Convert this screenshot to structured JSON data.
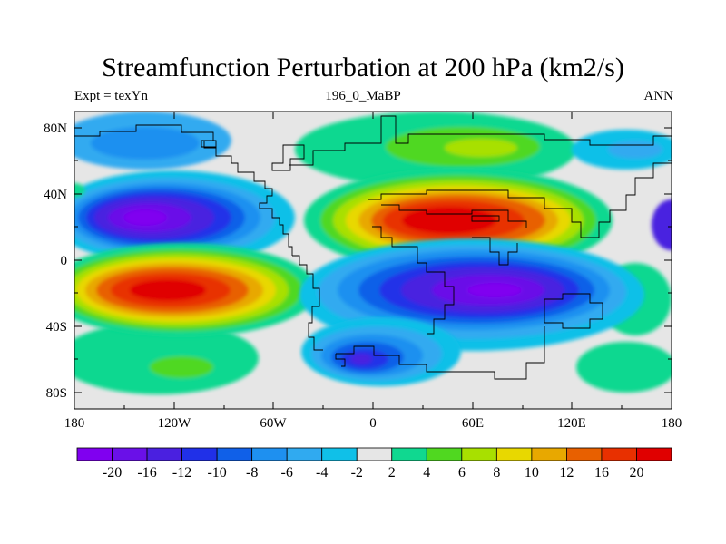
{
  "title": "Streamfunction Perturbation at 200 hPa (km2/s)",
  "subtitle_left": "Expt = texYn",
  "subtitle_center": "196_0_MaBP",
  "subtitle_right": "ANN",
  "lat_ticks": [
    "80N",
    "40N",
    "0",
    "40S",
    "80S"
  ],
  "lon_ticks": [
    "180",
    "120W",
    "60W",
    "0",
    "60E",
    "120E",
    "180"
  ],
  "colorbar": {
    "labels": [
      "-20",
      "-16",
      "-12",
      "-10",
      "-8",
      "-6",
      "-4",
      "-2",
      "2",
      "4",
      "6",
      "8",
      "10",
      "12",
      "16",
      "20"
    ],
    "colors": [
      "#8000f0",
      "#6a10e8",
      "#4a20e0",
      "#2030e8",
      "#1060e8",
      "#1e90f0",
      "#30aaf0",
      "#10c0e8",
      "#e6e6e6",
      "#10d890",
      "#50d820",
      "#a8e000",
      "#e8d800",
      "#e8a800",
      "#e86000",
      "#e83000",
      "#e00000"
    ]
  },
  "chart_data": {
    "type": "contour-map",
    "projection": "cylindrical equidistant",
    "xlim": [
      -180,
      180
    ],
    "ylim": [
      -90,
      90
    ],
    "levels": [
      -20,
      -16,
      -12,
      -10,
      -8,
      -6,
      -4,
      -2,
      2,
      4,
      6,
      8,
      10,
      12,
      16,
      20
    ],
    "units": "km2/s",
    "features": [
      {
        "name": "north-pacific-low",
        "lon": -130,
        "lat": 25,
        "min": -22
      },
      {
        "name": "south-pacific-high",
        "lon": -125,
        "lat": -18,
        "max": 20
      },
      {
        "name": "eurasian-high",
        "lon": 50,
        "lat": 25,
        "max": 22
      },
      {
        "name": "indian-ocean-low",
        "lon": 60,
        "lat": -15,
        "min": -20
      },
      {
        "name": "south-atlantic-low",
        "lon": 10,
        "lat": -58,
        "min": -14
      }
    ]
  }
}
